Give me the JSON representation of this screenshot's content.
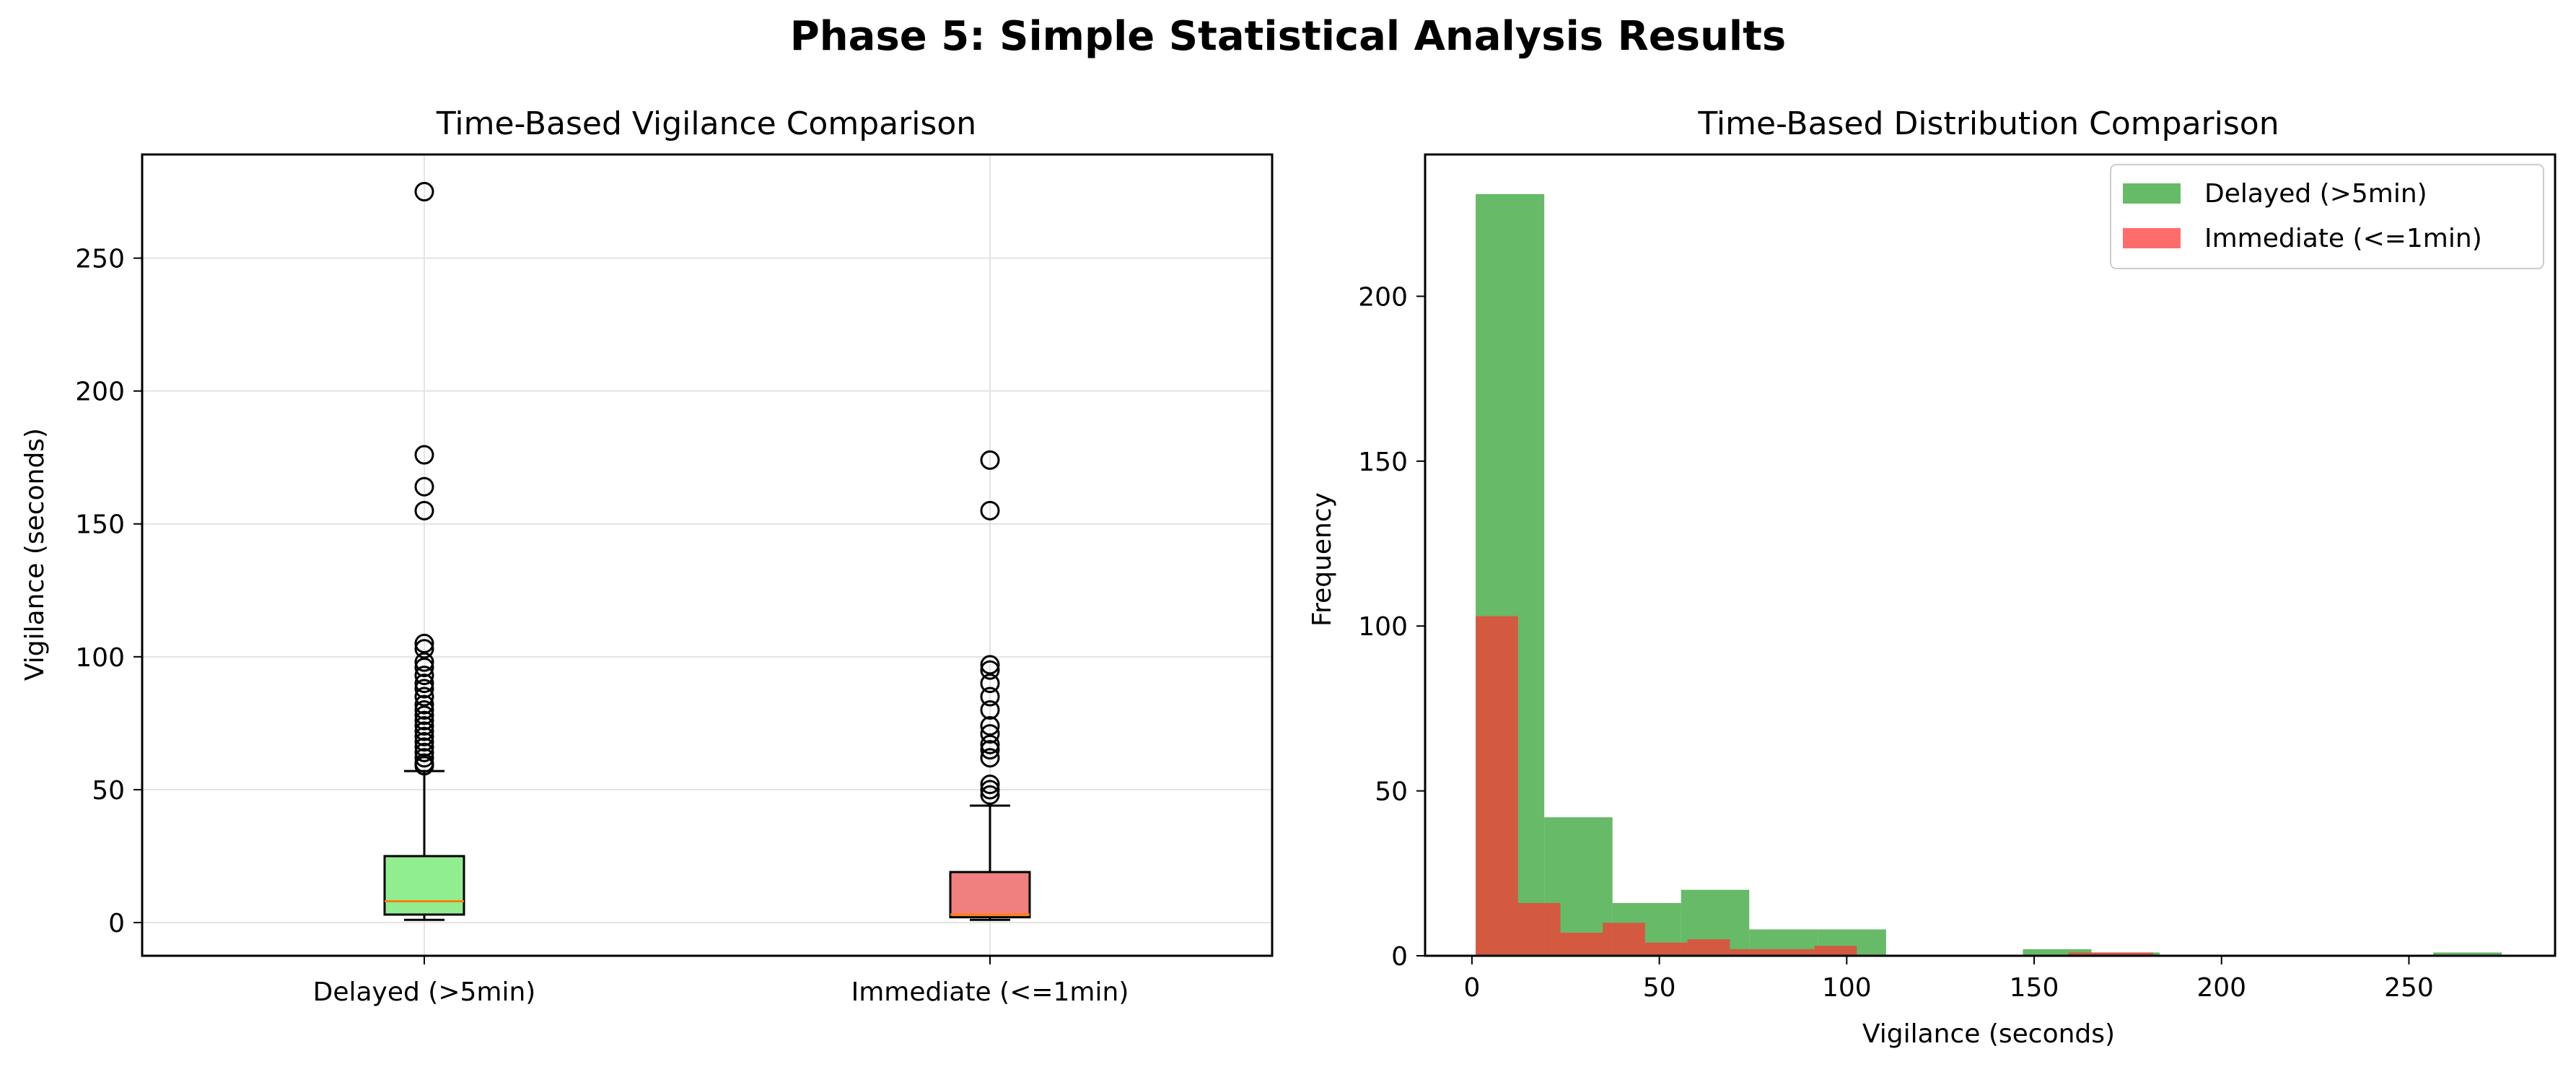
{
  "figure": {
    "suptitle": "Phase 5: Simple Statistical Analysis Results"
  },
  "chart_data": [
    {
      "type": "box",
      "title": "Time-Based Vigilance Comparison",
      "xlabel": "",
      "ylabel": "Vigilance (seconds)",
      "ylim": [
        -12.5,
        289
      ],
      "yticks": [
        0,
        50,
        100,
        150,
        200,
        250
      ],
      "grid": true,
      "categories": [
        "Delayed (>5min)",
        "Immediate (<=1min)"
      ],
      "boxes": [
        {
          "category": "Delayed (>5min)",
          "color": "#90ee90",
          "whisker_low": 1,
          "q1": 3,
          "median": 8,
          "q3": 25,
          "whisker_high": 57,
          "outliers": [
            275,
            176,
            164,
            155,
            105,
            103,
            98,
            96,
            93,
            90,
            88,
            85,
            82,
            80,
            78,
            76,
            74,
            72,
            70,
            68,
            66,
            64,
            62,
            60,
            59
          ]
        },
        {
          "category": "Immediate (<=1min)",
          "color": "#f08080",
          "whisker_low": 1,
          "q1": 2,
          "median": 3,
          "q3": 19,
          "whisker_high": 44,
          "outliers": [
            174,
            155,
            97,
            95,
            90,
            85,
            80,
            74,
            71,
            67,
            65,
            62,
            52,
            50,
            48
          ]
        }
      ]
    },
    {
      "type": "histogram",
      "title": "Time-Based Distribution Comparison",
      "xlabel": "Vigilance (seconds)",
      "ylabel": "Frequency",
      "xlim": [
        -12.5,
        289
      ],
      "ylim": [
        0,
        243
      ],
      "xticks": [
        0,
        50,
        100,
        150,
        200,
        250
      ],
      "yticks": [
        0,
        50,
        100,
        150,
        200
      ],
      "grid": false,
      "legend_position": "top-right",
      "series": [
        {
          "name": "Delayed (>5min)",
          "color": "#2ca02c",
          "opacity": 0.72,
          "bin_edges": [
            1,
            19.3,
            37.5,
            55.8,
            74,
            92.3,
            110.5,
            128.8,
            147,
            165.3,
            183.5,
            201.8,
            220,
            238.3,
            256.5,
            274.8
          ],
          "counts": [
            231,
            42,
            16,
            20,
            8,
            8,
            0,
            0,
            2,
            1,
            0,
            0,
            0,
            0,
            1
          ]
        },
        {
          "name": "Immediate (<=1min)",
          "color": "#ff3333",
          "opacity": 0.72,
          "bin_edges": [
            1,
            12.3,
            23.6,
            34.9,
            46.2,
            57.5,
            68.8,
            80.1,
            91.4,
            102.7,
            114,
            125.3,
            136.6,
            147.9,
            159.2,
            170.5,
            181.8
          ],
          "counts": [
            103,
            16,
            7,
            10,
            4,
            5,
            2,
            2,
            3,
            0,
            0,
            0,
            0,
            0,
            1,
            1
          ]
        }
      ]
    }
  ]
}
